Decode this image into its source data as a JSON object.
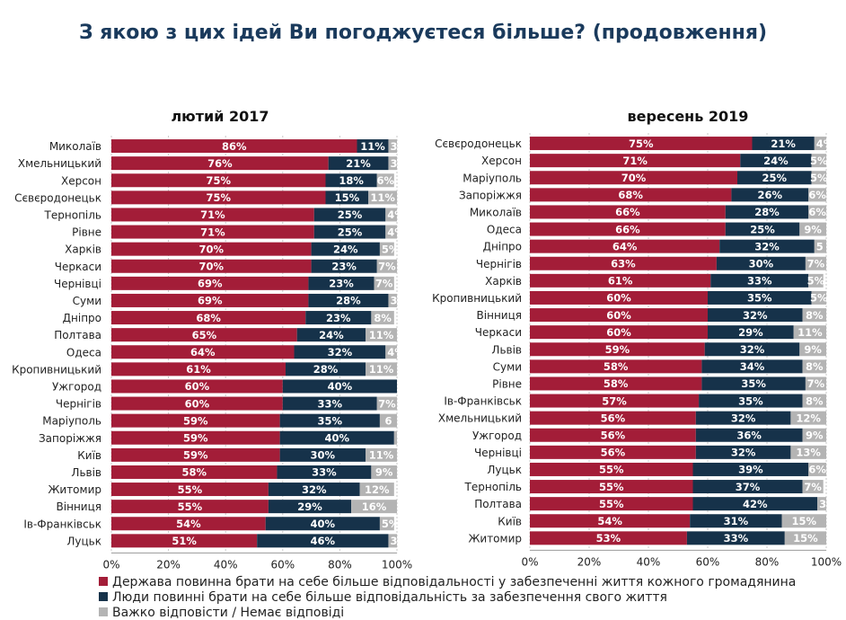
{
  "title": "З якою з цих ідей Ви погоджуєтеся більше? (продовження)",
  "colors": {
    "red": "#a31d38",
    "navy": "#16324a",
    "gray": "#b4b4b4"
  },
  "legend": [
    "Держава повинна брати на себе більше відповідальності у забезпеченні життя кожного громадянина",
    "Люди повинні брати на себе більше відповідальність за забезпечення свого життя",
    "Важко відповісти / Немає відповіді"
  ],
  "chart_data": [
    {
      "type": "bar",
      "stacked": true,
      "orientation": "horizontal",
      "title": "лютий 2017",
      "xlim": [
        0,
        100
      ],
      "x_ticks": [
        "0%",
        "20%",
        "40%",
        "60%",
        "80%",
        "100%"
      ],
      "categories": [
        "Миколаїв",
        "Хмельницький",
        "Херсон",
        "Сєвєродонецьк",
        "Тернопіль",
        "Рівне",
        "Харків",
        "Черкаси",
        "Чернівці",
        "Суми",
        "Дніпро",
        "Полтава",
        "Одеса",
        "Кропивницький",
        "Ужгород",
        "Чернігів",
        "Маріуполь",
        "Запоріжжя",
        "Київ",
        "Львів",
        "Житомир",
        "Вінниця",
        "Ів-Франківськ",
        "Луцьк"
      ],
      "series": [
        {
          "name": "Держава повинна брати на себе більше відповідальності у забезпеченні життя кожного громадянина",
          "values": [
            86,
            76,
            75,
            75,
            71,
            71,
            70,
            70,
            69,
            69,
            68,
            65,
            64,
            61,
            60,
            60,
            59,
            59,
            59,
            58,
            55,
            55,
            54,
            51
          ]
        },
        {
          "name": "Люди повинні брати на себе більше відповідальність за забезпечення свого життя",
          "values": [
            11,
            21,
            18,
            15,
            25,
            25,
            24,
            23,
            23,
            28,
            23,
            24,
            32,
            28,
            40,
            33,
            35,
            40,
            30,
            33,
            32,
            29,
            40,
            46
          ]
        },
        {
          "name": "Важко відповісти / Немає відповіді",
          "values": [
            3,
            3,
            6,
            11,
            4,
            4,
            5,
            7,
            7,
            3,
            8,
            11,
            4,
            11,
            0,
            7,
            6,
            1,
            11,
            9,
            12,
            16,
            5,
            3
          ]
        }
      ],
      "labels": [
        [
          "86%",
          "76%",
          "75%",
          "75%",
          "71%",
          "71%",
          "70%",
          "70%",
          "69%",
          "69%",
          "68%",
          "65%",
          "64%",
          "61%",
          "60%",
          "60%",
          "59%",
          "59%",
          "59%",
          "58%",
          "55%",
          "55%",
          "54%",
          "51%"
        ],
        [
          "11%",
          "21%",
          "18%",
          "15%",
          "25%",
          "25%",
          "24%",
          "23%",
          "23%",
          "28%",
          "23%",
          "24%",
          "32%",
          "28%",
          "40%",
          "33%",
          "35%",
          "40%",
          "30%",
          "33%",
          "32%",
          "29%",
          "40%",
          "46%"
        ],
        [
          "3%",
          "3",
          "6%",
          "11%",
          "4%",
          "4%",
          "5%",
          "7%",
          "7%",
          "3",
          "8%",
          "11%",
          "4%",
          "11%",
          "0",
          "7%",
          "6",
          "1",
          "11%",
          "9%",
          "12%",
          "16%",
          "5%",
          "3%"
        ]
      ]
    },
    {
      "type": "bar",
      "stacked": true,
      "orientation": "horizontal",
      "title": "вересень 2019",
      "xlim": [
        0,
        100
      ],
      "x_ticks": [
        "0%",
        "20%",
        "40%",
        "60%",
        "80%",
        "100%"
      ],
      "categories": [
        "Сєвєродонецьк",
        "Херсон",
        "Маріуполь",
        "Запоріжжя",
        "Миколаїв",
        "Одеса",
        "Дніпро",
        "Чернігів",
        "Харків",
        "Кропивницький",
        "Вінниця",
        "Черкаси",
        "Львів",
        "Суми",
        "Рівне",
        "Ів-Франківськ",
        "Хмельницький",
        "Ужгород",
        "Чернівці",
        "Луцьк",
        "Тернопіль",
        "Полтава",
        "Київ",
        "Житомир"
      ],
      "series": [
        {
          "name": "Держава повинна брати на себе більше відповідальності у забезпеченні життя кожного громадянина",
          "values": [
            75,
            71,
            70,
            68,
            66,
            66,
            64,
            63,
            61,
            60,
            60,
            60,
            59,
            58,
            58,
            57,
            56,
            56,
            56,
            55,
            55,
            55,
            54,
            53
          ]
        },
        {
          "name": "Люди повинні брати на себе більше відповідальність за забезпечення свого життя",
          "values": [
            21,
            24,
            25,
            26,
            28,
            25,
            32,
            30,
            33,
            35,
            32,
            29,
            32,
            34,
            35,
            35,
            32,
            36,
            32,
            39,
            37,
            42,
            31,
            33
          ]
        },
        {
          "name": "Важко відповісти / Немає відповіді",
          "values": [
            4,
            5,
            5,
            6,
            6,
            9,
            5,
            7,
            5,
            5,
            8,
            11,
            9,
            8,
            7,
            8,
            12,
            9,
            13,
            6,
            7,
            3,
            15,
            15
          ]
        }
      ],
      "labels": [
        [
          "75%",
          "71%",
          "70%",
          "68%",
          "66%",
          "66%",
          "64%",
          "63%",
          "61%",
          "60%",
          "60%",
          "60%",
          "59%",
          "58%",
          "58%",
          "57%",
          "56%",
          "56%",
          "56%",
          "55%",
          "55%",
          "55%",
          "54%",
          "53%"
        ],
        [
          "21%",
          "24%",
          "25%",
          "26%",
          "28%",
          "25%",
          "32%",
          "30%",
          "33%",
          "35%",
          "32%",
          "29%",
          "32%",
          "34%",
          "35%",
          "35%",
          "32%",
          "36%",
          "32%",
          "39%",
          "37%",
          "42%",
          "31%",
          "33%"
        ],
        [
          "4%",
          "5%",
          "5%",
          "6%",
          "6%",
          "9%",
          "5",
          "7%",
          "5%",
          "5%",
          "8%",
          "11%",
          "9%",
          "8%",
          "7%",
          "8%",
          "12%",
          "9%",
          "13%",
          "6%",
          "7%",
          "3%",
          "15%",
          "15%"
        ]
      ]
    }
  ]
}
